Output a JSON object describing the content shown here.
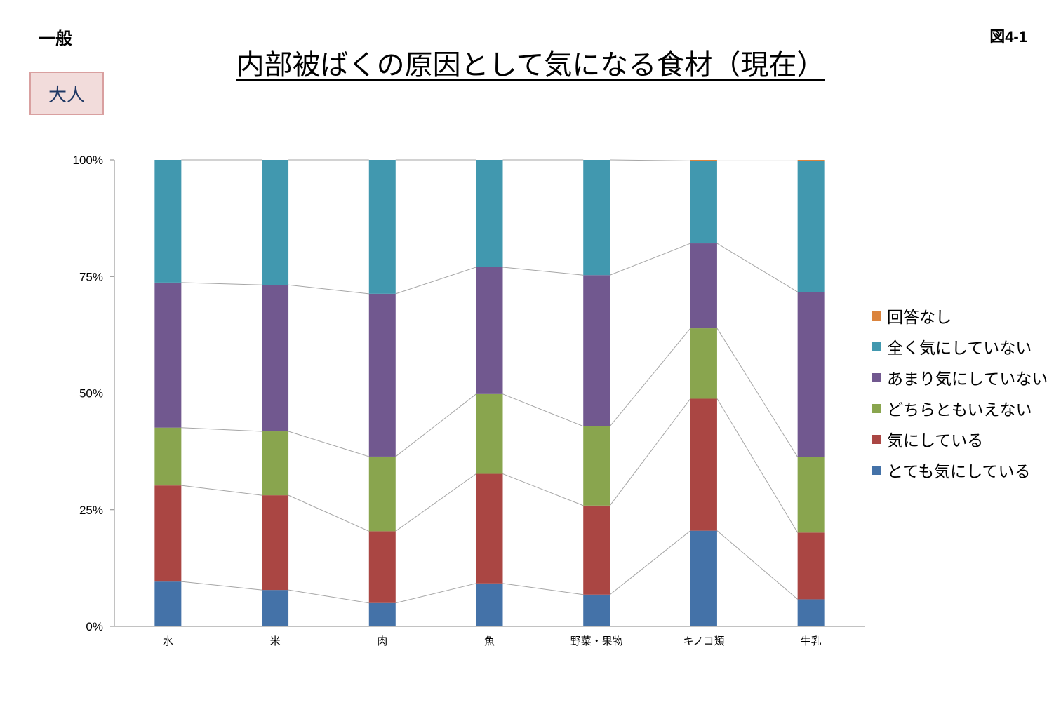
{
  "header": {
    "category": "一般",
    "figure_id": "図4-1",
    "badge": "大人"
  },
  "chart_data": {
    "type": "bar",
    "stacked": true,
    "title": "内部被ばくの原因として気になる食材（現在）",
    "categories": [
      "水",
      "米",
      "肉",
      "魚",
      "野菜・果物",
      "キノコ類",
      "牛乳"
    ],
    "ylim": [
      0,
      100
    ],
    "yticks": [
      "0%",
      "25%",
      "50%",
      "75%",
      "100%"
    ],
    "series_lines": true,
    "legend_position": "right",
    "series": [
      {
        "name": "とても気にしている",
        "color": "#4472a8",
        "values": [
          9.6,
          7.8,
          5.0,
          9.2,
          6.8,
          20.5,
          5.8
        ]
      },
      {
        "name": "気にしている",
        "color": "#aa4643",
        "values": [
          20.6,
          20.3,
          15.4,
          23.5,
          19.1,
          28.3,
          14.3
        ]
      },
      {
        "name": "どちらともいえない",
        "color": "#89a54e",
        "values": [
          12.4,
          13.7,
          16.0,
          17.1,
          17.0,
          15.1,
          16.2
        ]
      },
      {
        "name": "あまり気にしていない",
        "color": "#71588f",
        "values": [
          31.1,
          31.4,
          34.9,
          27.2,
          32.4,
          18.2,
          35.4
        ]
      },
      {
        "name": "全く気にしていない",
        "color": "#4198af",
        "values": [
          26.3,
          26.8,
          28.7,
          23.0,
          24.7,
          17.7,
          28.1
        ]
      },
      {
        "name": "回答なし",
        "color": "#db843d",
        "values": [
          0.0,
          0.0,
          0.0,
          0.0,
          0.0,
          0.2,
          0.2
        ]
      }
    ]
  }
}
